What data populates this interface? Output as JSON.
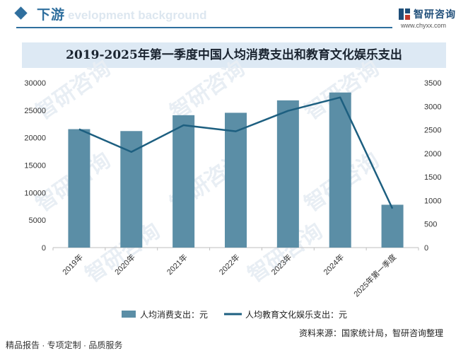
{
  "header": {
    "section_title": "下游",
    "bg_text": "evelopment background",
    "logo_name": "智研咨询",
    "logo_url": "www.chyxx.com"
  },
  "chart_data": {
    "type": "bar",
    "title": "2019-2025年第一季度中国人均消费支出和教育文化娱乐支出",
    "categories": [
      "2019年",
      "2020年",
      "2021年",
      "2022年",
      "2023年",
      "2024年",
      "2025年第一季度"
    ],
    "series": [
      {
        "name": "人均消费支出：元",
        "type": "bar",
        "axis": "left",
        "color": "#5b8ea6",
        "values": [
          21559,
          21210,
          24100,
          24538,
          26796,
          28227,
          7800
        ]
      },
      {
        "name": "人均教育文化娱乐支出：元",
        "type": "line",
        "axis": "right",
        "color": "#1d5f80",
        "values": [
          2513,
          2032,
          2599,
          2469,
          2904,
          3189,
          830
        ]
      }
    ],
    "y_left": {
      "min": 0,
      "max": 30000,
      "ticks": [
        0,
        5000,
        10000,
        15000,
        20000,
        25000,
        30000
      ]
    },
    "y_right": {
      "min": 0,
      "max": 3500,
      "ticks": [
        0,
        500,
        1000,
        1500,
        2000,
        2500,
        3000,
        3500
      ]
    },
    "grid": false,
    "legend_position": "bottom"
  },
  "footer": {
    "left": "精品报告 · 专项定制 · 品质服务",
    "source": "资料来源：国家统计局，智研咨询整理"
  },
  "watermark": "智研咨询"
}
